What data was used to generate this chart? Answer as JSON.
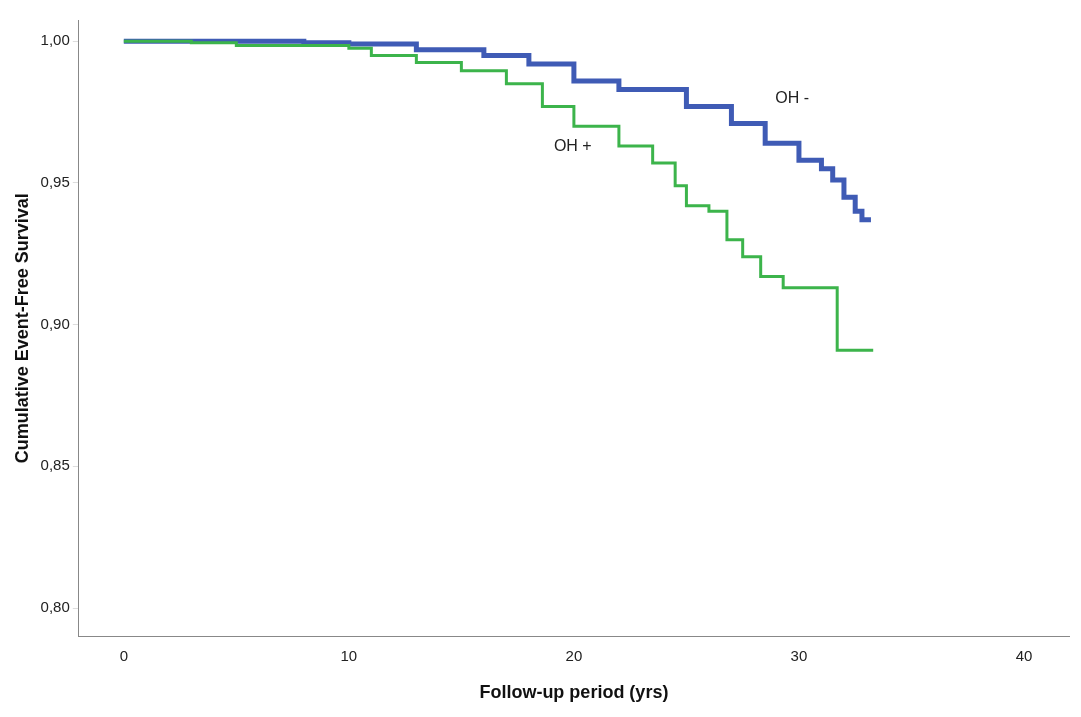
{
  "chart_data": {
    "type": "step",
    "xlabel": "Follow-up period (yrs)",
    "ylabel": "Cumulative Event-Free Survival",
    "xlim": [
      -2,
      42
    ],
    "xticks": [
      0,
      10,
      20,
      30,
      40
    ],
    "ylim": [
      0.79,
      1.0075
    ],
    "yticks": [
      {
        "value": 0.8,
        "label": "0,80"
      },
      {
        "value": 0.85,
        "label": "0,85"
      },
      {
        "value": 0.9,
        "label": "0,90"
      },
      {
        "value": 0.95,
        "label": "0,95"
      },
      {
        "value": 1,
        "label": "1,00"
      }
    ],
    "grid": false,
    "legend": false,
    "series": [
      {
        "name": "OH -",
        "color": "#3f5bb5",
        "x": [
          0,
          5,
          8,
          10,
          13,
          16,
          18,
          20,
          22,
          25,
          27,
          28.5,
          30,
          31,
          31.5,
          32,
          32.5,
          32.8,
          33.2
        ],
        "values": [
          1,
          1,
          0.9995,
          0.999,
          0.997,
          0.995,
          0.992,
          0.986,
          0.983,
          0.977,
          0.971,
          0.964,
          0.958,
          0.955,
          0.951,
          0.945,
          0.94,
          0.937,
          0.937
        ]
      },
      {
        "name": "OH +",
        "color": "#3cb44b",
        "x": [
          0,
          3,
          5,
          10,
          11,
          13,
          15,
          17,
          18.6,
          20,
          22,
          23.5,
          24.5,
          25,
          26,
          26.8,
          27.5,
          28.3,
          29.3,
          31.7,
          33.3
        ],
        "values": [
          1,
          0.9995,
          0.9985,
          0.9975,
          0.995,
          0.9925,
          0.9896,
          0.985,
          0.977,
          0.97,
          0.963,
          0.957,
          0.949,
          0.942,
          0.94,
          0.93,
          0.924,
          0.917,
          0.913,
          0.891,
          0.891
        ]
      }
    ]
  }
}
